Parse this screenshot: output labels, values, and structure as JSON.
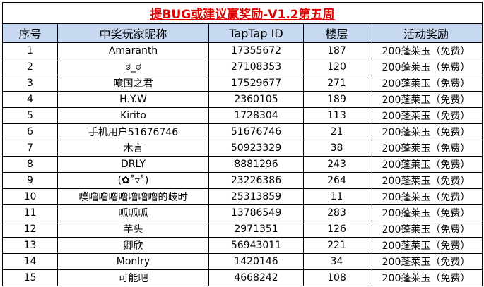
{
  "table": {
    "title": "提BUG或建议赢奖励-V1.2第五周",
    "columns": [
      "序号",
      "中奖玩家昵称",
      "TapTap ID",
      "楼层",
      "活动奖励"
    ],
    "rows": [
      [
        "1",
        "Amaranth",
        "17355672",
        "187",
        "200蓬莱玉（免费）"
      ],
      [
        "2",
        "ಠ_ಠ",
        "27108353",
        "120",
        "200蓬莱玉（免费）"
      ],
      [
        "3",
        "噫国之君",
        "17529677",
        "271",
        "200蓬莱玉（免费）"
      ],
      [
        "4",
        "H.Y.W",
        "2360105",
        "189",
        "200蓬莱玉（免费）"
      ],
      [
        "5",
        "Kirito",
        "1728304",
        "113",
        "200蓬莱玉（免费）"
      ],
      [
        "6",
        "手机用户51676746",
        "51676746",
        "21",
        "200蓬莱玉（免费）"
      ],
      [
        "7",
        "木言",
        "50923329",
        "38",
        "200蓬莱玉（免费）"
      ],
      [
        "8",
        "DRLY",
        "8881296",
        "243",
        "200蓬莱玉（免费）"
      ],
      [
        "9",
        "(✿˚▿˚)",
        "23226386",
        "264",
        "200蓬莱玉（免费）"
      ],
      [
        "10",
        "噗噜噜噜噜噜噜噜的歧时",
        "25313859",
        "11",
        "200蓬莱玉（免费）"
      ],
      [
        "11",
        "呱呱呱",
        "13786549",
        "283",
        "200蓬莱玉（免费）"
      ],
      [
        "12",
        "芋头",
        "2971351",
        "126",
        "200蓬莱玉（免费）"
      ],
      [
        "13",
        "卿欣",
        "56943011",
        "221",
        "200蓬莱玉（免费）"
      ],
      [
        "14",
        "Monlry",
        "1420146",
        "34",
        "200蓬莱玉（免费）"
      ],
      [
        "15",
        "可能吧",
        "4668242",
        "108",
        "200蓬莱玉（免费）"
      ]
    ]
  }
}
